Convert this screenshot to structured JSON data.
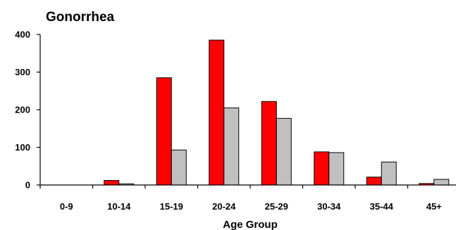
{
  "chart_data": {
    "type": "bar",
    "title": "Gonorrhea",
    "xlabel": "Age Group",
    "ylabel": "",
    "categories": [
      "0-9",
      "10-14",
      "15-19",
      "20-24",
      "25-29",
      "30-34",
      "35-44",
      "45+"
    ],
    "series": [
      {
        "values": [
          0,
          12,
          285,
          385,
          222,
          88,
          21,
          4
        ],
        "color": "#ff0000"
      },
      {
        "values": [
          0,
          3,
          93,
          205,
          177,
          86,
          61,
          15
        ],
        "color": "#c0c0c0"
      }
    ],
    "ylim": [
      0,
      400
    ],
    "yticks": [
      "0",
      "100",
      "200",
      "300",
      "400"
    ],
    "grid": false,
    "legend": "none"
  }
}
